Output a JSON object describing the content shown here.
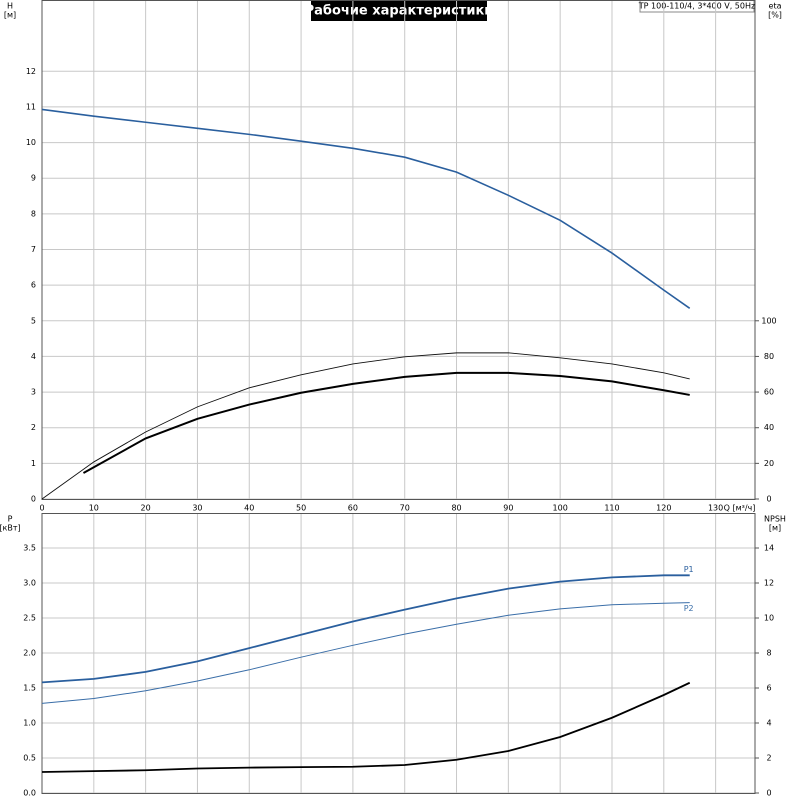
{
  "chart_data": [
    {
      "type": "line",
      "title": "Рабочие характеристики",
      "annotation": "TP 100-110/4, 3*400 V, 50Hz",
      "ylabel": "H",
      "yunit": "[м]",
      "y2label": "eta",
      "y2unit": "[%]",
      "xlabel": "Q [м³/ч]",
      "xlim": [
        0,
        137.6
      ],
      "xticks": [
        0,
        10,
        20,
        30,
        40,
        50,
        60,
        70,
        80,
        90,
        100,
        110,
        120,
        130
      ],
      "ylim": [
        0,
        14
      ],
      "yticks": [
        0,
        1,
        2,
        3,
        4,
        5,
        6,
        7,
        8,
        9,
        10,
        11,
        12
      ],
      "y2lim": [
        0,
        280
      ],
      "y2ticks": [
        0,
        20,
        40,
        60,
        80,
        100
      ],
      "grid": true,
      "series": [
        {
          "color": "#2a5f9e",
          "line_width": 1.6,
          "x": [
            0,
            10,
            20,
            30,
            40,
            50,
            60,
            70,
            80,
            90,
            100,
            110,
            120,
            125
          ],
          "values": [
            10.93,
            10.74,
            10.57,
            10.4,
            10.23,
            10.04,
            9.84,
            9.59,
            9.17,
            8.52,
            7.82,
            6.9,
            5.86,
            5.35
          ]
        },
        {
          "color": "#111111",
          "line_width": 0.9,
          "axis": "y2",
          "x": [
            0,
            10,
            20,
            30,
            40,
            50,
            60,
            70,
            80,
            90,
            100,
            110,
            120,
            125
          ],
          "values": [
            0,
            20.8,
            37.6,
            51.7,
            62.4,
            69.7,
            75.8,
            79.8,
            82,
            82,
            79.2,
            75.8,
            70.8,
            67.4
          ]
        },
        {
          "color": "#000000",
          "line_width": 2,
          "axis": "y2",
          "x": [
            8,
            20,
            30,
            40,
            50,
            60,
            70,
            80,
            90,
            100,
            110,
            120,
            125
          ],
          "values": [
            14.6,
            34,
            45,
            53,
            59.6,
            64.6,
            68.5,
            70.8,
            70.8,
            69,
            66,
            61,
            58.4
          ]
        }
      ]
    },
    {
      "type": "line",
      "ylabel": "P",
      "yunit": "[кВт]",
      "y2label": "NPSH",
      "y2unit": "[м]",
      "xlim": [
        0,
        137.6
      ],
      "ylim": [
        0,
        4
      ],
      "yticks": [
        {
          "value": 0,
          "label": "0.0"
        },
        0.5,
        {
          "value": 1,
          "label": "1.0"
        },
        1.5,
        {
          "value": 2,
          "label": "2.0"
        },
        2.5,
        {
          "value": 3,
          "label": "3.0"
        },
        3.5
      ],
      "y2lim": [
        0,
        16
      ],
      "y2ticks": [
        0,
        2,
        4,
        6,
        8,
        10,
        12,
        14
      ],
      "grid": true,
      "series": [
        {
          "name": "P1",
          "color": "#2a5f9e",
          "line_width": 1.8,
          "x": [
            0,
            10,
            20,
            30,
            40,
            50,
            60,
            70,
            80,
            90,
            100,
            110,
            120,
            125
          ],
          "values": [
            1.58,
            1.63,
            1.73,
            1.88,
            2.07,
            2.26,
            2.45,
            2.62,
            2.78,
            2.92,
            3.02,
            3.08,
            3.11,
            3.11
          ]
        },
        {
          "name": "P2",
          "color": "#3a6ea8",
          "line_width": 1,
          "x": [
            0,
            10,
            20,
            30,
            40,
            50,
            60,
            70,
            80,
            90,
            100,
            110,
            120,
            125
          ],
          "values": [
            1.28,
            1.35,
            1.46,
            1.6,
            1.76,
            1.94,
            2.11,
            2.27,
            2.41,
            2.54,
            2.63,
            2.69,
            2.71,
            2.72
          ]
        },
        {
          "color": "#000000",
          "line_width": 1.8,
          "axis": "y2",
          "x": [
            0,
            10,
            20,
            30,
            40,
            50,
            60,
            70,
            80,
            90,
            100,
            110,
            120,
            125
          ],
          "values": [
            1.2,
            1.25,
            1.3,
            1.4,
            1.45,
            1.48,
            1.5,
            1.6,
            1.9,
            2.4,
            3.2,
            4.3,
            5.6,
            6.3
          ]
        }
      ]
    }
  ]
}
